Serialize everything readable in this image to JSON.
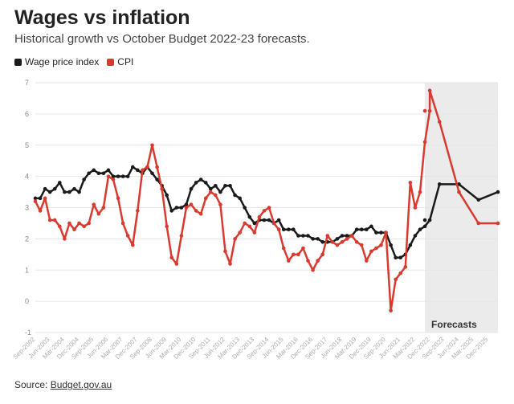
{
  "title": "Wages vs inflation",
  "subtitle": "Historical growth vs October Budget 2022-23 forecasts.",
  "legend": [
    {
      "name": "Wage price index",
      "color": "#1a1a1a"
    },
    {
      "name": "CPI",
      "color": "#d93a2f"
    }
  ],
  "source_label": "Source:",
  "source_link": "Budget.gov.au",
  "chart_data": {
    "type": "line",
    "ylim": [
      -1,
      7
    ],
    "yticks": [
      -1,
      0,
      1,
      2,
      3,
      4,
      5,
      6,
      7
    ],
    "x_start_quarter": "Sep-2002",
    "x_end_quarter": "Jun-2026",
    "x_tick_labels": [
      "Sep-2002",
      "Jun-2003",
      "Mar-2004",
      "Dec-2004",
      "Sep-2005",
      "Jun-2006",
      "Mar-2007",
      "Dec-2007",
      "Sep-2008",
      "Jun-2009",
      "Mar-2010",
      "Dec-2010",
      "Sep-2011",
      "Jun-2012",
      "Mar-2013",
      "Dec-2013",
      "Sep-2014",
      "Jun-2015",
      "Mar-2016",
      "Dec-2016",
      "Sep-2017",
      "Jun-2018",
      "Mar-2019",
      "Dec-2019",
      "Sep-2020",
      "Jun-2021",
      "Mar-2022",
      "Dec-2022",
      "Sep-2023",
      "Jun-2024",
      "Mar-2025",
      "Dec-2025"
    ],
    "forecast_region": {
      "start": "Sep-2022",
      "end": "Jun-2026",
      "label": "Forecasts"
    },
    "series": [
      {
        "name": "Wage price index",
        "color": "#1a1a1a",
        "historical": [
          3.3,
          3.3,
          3.6,
          3.5,
          3.6,
          3.8,
          3.5,
          3.5,
          3.6,
          3.5,
          3.9,
          4.1,
          4.2,
          4.1,
          4.1,
          4.2,
          4.0,
          4.0,
          4.0,
          4.0,
          4.3,
          4.2,
          4.1,
          4.3,
          4.1,
          3.9,
          3.7,
          3.4,
          2.9,
          3.0,
          3.0,
          3.1,
          3.6,
          3.8,
          3.9,
          3.8,
          3.6,
          3.7,
          3.5,
          3.7,
          3.7,
          3.4,
          3.3,
          3.0,
          2.7,
          2.5,
          2.6,
          2.6,
          2.6,
          2.5,
          2.6,
          2.3,
          2.3,
          2.3,
          2.1,
          2.1,
          2.1,
          2.0,
          2.0,
          1.9,
          1.9,
          1.9,
          2.0,
          2.1,
          2.1,
          2.1,
          2.3,
          2.3,
          2.3,
          2.4,
          2.2,
          2.2,
          2.2,
          1.8,
          1.4,
          1.4,
          1.5,
          1.8,
          2.1,
          2.3,
          2.4,
          2.6
        ],
        "forecast_points": [
          {
            "q": "Sep-2022",
            "v": 2.6
          },
          {
            "q": "Jun-2023",
            "v": 3.75
          },
          {
            "q": "Jun-2024",
            "v": 3.75
          },
          {
            "q": "Jun-2025",
            "v": 3.25
          },
          {
            "q": "Jun-2026",
            "v": 3.5
          }
        ]
      },
      {
        "name": "CPI",
        "color": "#d93a2f",
        "historical": [
          3.2,
          2.9,
          3.3,
          2.6,
          2.6,
          2.4,
          2.0,
          2.5,
          2.3,
          2.5,
          2.4,
          2.5,
          3.1,
          2.8,
          3.0,
          4.0,
          3.9,
          3.3,
          2.5,
          2.1,
          1.8,
          2.9,
          4.2,
          4.3,
          5.0,
          4.3,
          3.6,
          2.4,
          1.4,
          1.2,
          2.1,
          3.0,
          3.1,
          2.9,
          2.8,
          3.3,
          3.5,
          3.4,
          3.1,
          1.6,
          1.2,
          2.0,
          2.2,
          2.5,
          2.4,
          2.2,
          2.7,
          2.9,
          3.0,
          2.5,
          2.3,
          1.7,
          1.3,
          1.5,
          1.5,
          1.7,
          1.3,
          1.0,
          1.3,
          1.5,
          2.1,
          1.9,
          1.8,
          1.9,
          2.0,
          2.1,
          1.9,
          1.8,
          1.3,
          1.6,
          1.7,
          1.8,
          2.2,
          -0.3,
          0.7,
          0.9,
          1.1,
          3.8,
          3.0,
          3.5,
          5.1,
          6.1
        ],
        "forecast_points": [
          {
            "q": "Sep-2022",
            "v": 6.1
          },
          {
            "q": "Dec-2022",
            "v": 6.75
          },
          {
            "q": "Jun-2023",
            "v": 5.75
          },
          {
            "q": "Jun-2024",
            "v": 3.5
          },
          {
            "q": "Jun-2025",
            "v": 2.5
          },
          {
            "q": "Jun-2026",
            "v": 2.5
          }
        ]
      }
    ]
  }
}
